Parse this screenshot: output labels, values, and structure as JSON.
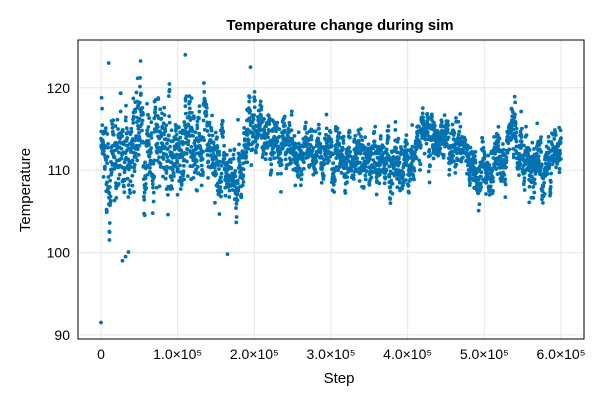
{
  "chart_data": {
    "type": "scatter",
    "title": "Temperature change during sim",
    "xlabel": "Step",
    "ylabel": "Temperature",
    "xlim": [
      -30000,
      630000
    ],
    "ylim": [
      89.5,
      125.8
    ],
    "x_ticks": [
      0,
      100000,
      200000,
      300000,
      400000,
      500000,
      600000
    ],
    "x_tick_labels": [
      "0",
      "1.0×10⁵",
      "2.0×10⁵",
      "3.0×10⁵",
      "4.0×10⁵",
      "5.0×10⁵",
      "6.0×10⁵"
    ],
    "y_ticks": [
      90,
      100,
      110,
      120
    ],
    "y_tick_labels": [
      "90",
      "100",
      "110",
      "120"
    ],
    "grid": true,
    "legend": "none",
    "series": [
      {
        "color": "#0072b2",
        "point_count": 3000,
        "x_start": 0,
        "x_end": 600000,
        "trend": {
          "x": [
            0,
            20000,
            50000,
            80000,
            100000,
            130000,
            160000,
            175000,
            195000,
            230000,
            270000,
            300000,
            350000,
            400000,
            430000,
            460000,
            500000,
            540000,
            560000,
            580000,
            600000
          ],
          "mean": [
            111,
            112,
            114,
            112,
            113,
            114,
            110,
            108,
            116,
            114,
            112,
            112,
            111,
            111,
            115,
            113,
            109,
            114,
            110,
            110,
            113
          ],
          "spread": [
            4.5,
            4.5,
            4.0,
            3.5,
            3.5,
            3.5,
            3.0,
            3.0,
            2.5,
            2.2,
            2.2,
            2.2,
            2.2,
            2.2,
            2.0,
            2.0,
            2.2,
            2.5,
            2.2,
            2.2,
            2.2
          ]
        },
        "outliers": [
          {
            "x": 0,
            "y": 91.5
          },
          {
            "x": 28000,
            "y": 99.0
          },
          {
            "x": 32000,
            "y": 99.5
          },
          {
            "x": 10000,
            "y": 123.0
          },
          {
            "x": 110000,
            "y": 124.0
          },
          {
            "x": 195000,
            "y": 122.5
          },
          {
            "x": 165000,
            "y": 99.8
          }
        ]
      }
    ]
  }
}
